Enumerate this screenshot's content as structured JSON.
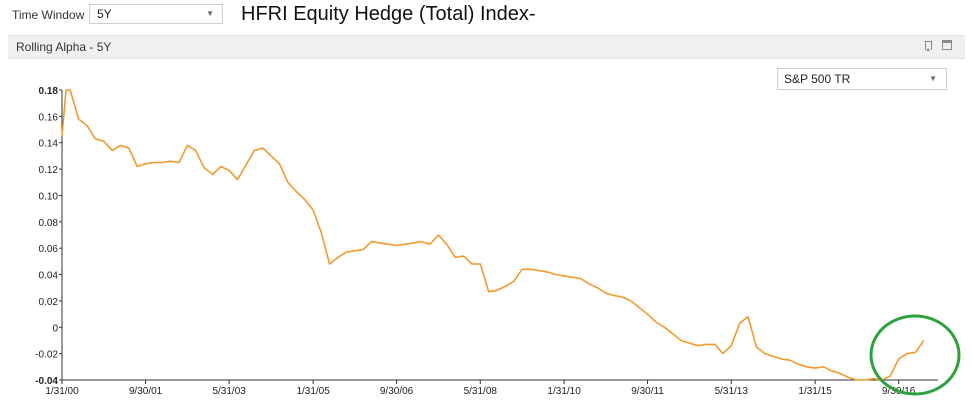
{
  "toolbar": {
    "time_window_label": "Time Window",
    "time_window_value": "5Y",
    "index_title": "HFRI Equity Hedge (Total) Index-"
  },
  "panel": {
    "title": "Rolling Alpha - 5Y",
    "benchmark_value": "S&P 500 TR",
    "icons": [
      "bookmark-icon",
      "window-icon"
    ]
  },
  "chart_data": {
    "type": "line",
    "x_tick_labels": [
      "1/31/00",
      "9/30/01",
      "5/31/03",
      "1/31/05",
      "9/30/06",
      "5/31/08",
      "1/31/10",
      "9/30/11",
      "5/31/13",
      "1/31/15",
      "9/30/16"
    ],
    "y_tick_labels": [
      "0.18",
      "0.16",
      "0.14",
      "0.12",
      "0.10",
      "0.08",
      "0.06",
      "0.04",
      "0.02",
      "0",
      "-0.02",
      "-0.04"
    ],
    "ylim": [
      -0.04,
      0.18
    ],
    "x": [
      "2000-01-31",
      "2000-02-29",
      "2000-03-31",
      "2000-05-31",
      "2000-07-31",
      "2000-09-30",
      "2000-11-30",
      "2001-01-31",
      "2001-03-31",
      "2001-05-31",
      "2001-07-31",
      "2001-09-30",
      "2001-11-30",
      "2002-01-31",
      "2002-03-31",
      "2002-05-31",
      "2002-07-31",
      "2002-09-30",
      "2002-11-30",
      "2003-01-31",
      "2003-03-31",
      "2003-05-31",
      "2003-07-31",
      "2003-09-30",
      "2003-11-30",
      "2004-01-31",
      "2004-03-31",
      "2004-05-31",
      "2004-07-31",
      "2004-09-30",
      "2004-11-30",
      "2005-01-31",
      "2005-03-31",
      "2005-05-31",
      "2005-07-31",
      "2005-09-30",
      "2005-11-30",
      "2006-01-31",
      "2006-03-31",
      "2006-05-31",
      "2006-07-31",
      "2006-09-30",
      "2006-11-30",
      "2007-01-31",
      "2007-03-31",
      "2007-05-31",
      "2007-07-31",
      "2007-09-30",
      "2007-11-30",
      "2008-01-31",
      "2008-03-31",
      "2008-05-31",
      "2008-07-31",
      "2008-09-30",
      "2008-11-30",
      "2009-01-31",
      "2009-03-31",
      "2009-05-31",
      "2009-07-31",
      "2009-09-30",
      "2009-11-30",
      "2010-01-31",
      "2010-03-31",
      "2010-05-31",
      "2010-07-31",
      "2010-09-30",
      "2010-11-30",
      "2011-01-31",
      "2011-03-31",
      "2011-05-31",
      "2011-07-31",
      "2011-09-30",
      "2011-11-30",
      "2012-01-31",
      "2012-03-31",
      "2012-05-31",
      "2012-07-31",
      "2012-09-30",
      "2012-11-30",
      "2013-01-31",
      "2013-03-31",
      "2013-05-31",
      "2013-07-31",
      "2013-09-30",
      "2013-11-30",
      "2014-01-31",
      "2014-03-31",
      "2014-05-31",
      "2014-07-31",
      "2014-09-30",
      "2014-11-30",
      "2015-01-31",
      "2015-03-31",
      "2015-05-31",
      "2015-07-31",
      "2015-09-30",
      "2015-11-30",
      "2016-01-31",
      "2016-03-31",
      "2016-05-31",
      "2016-07-31",
      "2016-09-30",
      "2016-11-30",
      "2017-01-31",
      "2017-03-31"
    ],
    "series": [
      {
        "color": "#f39a2b",
        "values": [
          0.145,
          0.18,
          0.18,
          0.158,
          0.153,
          0.143,
          0.141,
          0.134,
          0.138,
          0.136,
          0.122,
          0.124,
          0.125,
          0.125,
          0.126,
          0.125,
          0.138,
          0.134,
          0.121,
          0.116,
          0.122,
          0.119,
          0.112,
          0.123,
          0.134,
          0.136,
          0.13,
          0.124,
          0.11,
          0.103,
          0.097,
          0.089,
          0.072,
          0.048,
          0.053,
          0.057,
          0.058,
          0.059,
          0.065,
          0.064,
          0.063,
          0.062,
          0.063,
          0.064,
          0.065,
          0.063,
          0.07,
          0.063,
          0.053,
          0.054,
          0.048,
          0.048,
          0.027,
          0.028,
          0.031,
          0.035,
          0.044,
          0.044,
          0.043,
          0.042,
          0.04,
          0.039,
          0.038,
          0.037,
          0.033,
          0.03,
          0.026,
          0.024,
          0.023,
          0.02,
          0.015,
          0.01,
          0.004,
          0.0,
          -0.005,
          -0.01,
          -0.012,
          -0.014,
          -0.013,
          -0.013,
          -0.02,
          -0.014,
          0.003,
          0.008,
          -0.015,
          -0.02,
          -0.022,
          -0.024,
          -0.025,
          -0.028,
          -0.03,
          -0.031,
          -0.03,
          -0.033,
          -0.035,
          -0.038,
          -0.04,
          -0.04,
          -0.039,
          -0.04,
          -0.037,
          -0.024,
          -0.02,
          -0.019,
          -0.01
        ]
      }
    ],
    "grid": false,
    "annotation": {
      "shape": "ellipse",
      "color": "#2aa33a"
    }
  }
}
